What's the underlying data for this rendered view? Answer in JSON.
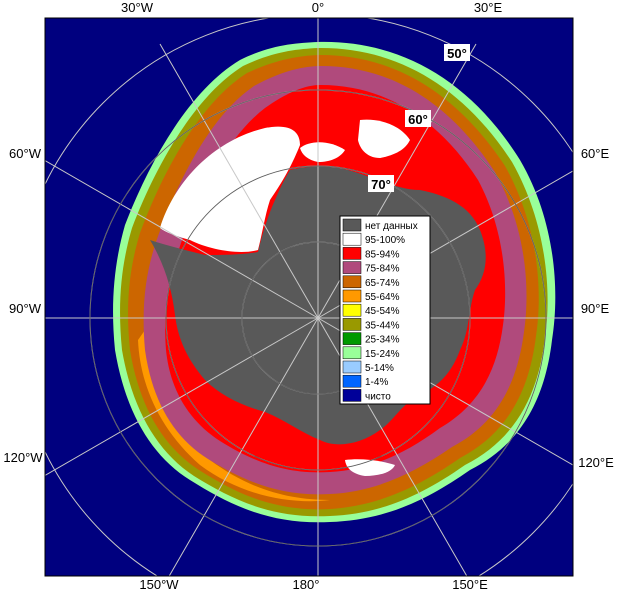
{
  "map": {
    "longitude_labels": {
      "top": [
        "30°W",
        "0°",
        "30°E"
      ],
      "left": [
        "60°W",
        "90°W",
        "120°W"
      ],
      "right": [
        "60°E",
        "90°E",
        "120°E"
      ],
      "bottom": [
        "150°W",
        "180°",
        "150°E"
      ]
    },
    "latitude_labels": [
      "50°",
      "60°",
      "70°"
    ],
    "colors": {
      "ocean": "#00007f",
      "land": "#595959",
      "grid": "#c8c8c8",
      "frame": "#000000"
    }
  },
  "legend": {
    "items": [
      {
        "label": "нет данных",
        "color": "#595959"
      },
      {
        "label": "95-100%",
        "color": "#ffffff"
      },
      {
        "label": "85-94%",
        "color": "#ff0000"
      },
      {
        "label": "75-84%",
        "color": "#b04a7c"
      },
      {
        "label": "65-74%",
        "color": "#cc6600"
      },
      {
        "label": "55-64%",
        "color": "#ff9900"
      },
      {
        "label": "45-54%",
        "color": "#ffff00"
      },
      {
        "label": "35-44%",
        "color": "#999900"
      },
      {
        "label": "25-34%",
        "color": "#009900"
      },
      {
        "label": "15-24%",
        "color": "#99ff99"
      },
      {
        "label": "5-14%",
        "color": "#99ccff"
      },
      {
        "label": "1-4%",
        "color": "#0066ff"
      },
      {
        "label": "чисто",
        "color": "#000099"
      }
    ]
  }
}
